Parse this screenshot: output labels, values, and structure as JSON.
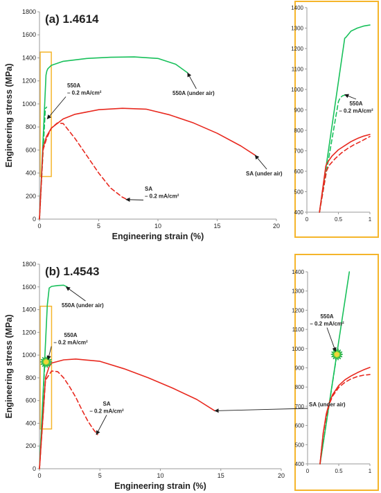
{
  "colors": {
    "green": "#17c05a",
    "red": "#e8281e",
    "frame": "#f5b52a",
    "axis": "#9a9a9a"
  },
  "chart_data": [
    {
      "id": "a-main",
      "type": "line",
      "panel_label": "(a) 1.4614",
      "xlabel": "Engineering strain (%)",
      "ylabel": "Engineering stress (MPa)",
      "xlim": [
        0,
        20
      ],
      "ylim": [
        0,
        1800
      ],
      "xticks": [
        0,
        5,
        10,
        15,
        20
      ],
      "yticks": [
        0,
        200,
        400,
        600,
        800,
        1000,
        1200,
        1400,
        1600,
        1800
      ],
      "xtick_labels": [
        "0",
        "5",
        "10",
        "15",
        "20"
      ],
      "ytick_labels": [
        "0",
        "200",
        "400",
        "600",
        "800",
        "1000",
        "1200",
        "1400",
        "1600",
        "1800"
      ],
      "grid": false,
      "series": [
        {
          "condition": "550A (under air)",
          "color": "green",
          "dashed": false,
          "x": [
            0,
            0.55,
            0.62,
            0.7,
            1,
            2,
            4,
            6,
            8,
            10,
            11.5,
            12.5
          ],
          "y": [
            0,
            1250,
            1285,
            1305,
            1335,
            1370,
            1395,
            1405,
            1408,
            1395,
            1345,
            1270
          ]
        },
        {
          "condition": "550A 0.2 mA/cm2",
          "color": "green",
          "dashed": true,
          "x": [
            0,
            0.5,
            0.6
          ],
          "y": [
            0,
            960,
            972
          ]
        },
        {
          "condition": "SA (under air)",
          "color": "red",
          "dashed": false,
          "x": [
            0,
            0.3,
            0.6,
            1,
            2,
            3,
            5,
            7,
            9,
            11,
            13,
            15,
            17,
            18.2
          ],
          "y": [
            0,
            620,
            720,
            790,
            870,
            910,
            950,
            962,
            955,
            905,
            835,
            745,
            635,
            555
          ]
        },
        {
          "condition": "SA 0.2 mA/cm2",
          "color": "red",
          "dashed": true,
          "x": [
            0,
            0.3,
            0.6,
            1,
            1.5,
            2,
            3,
            4,
            5,
            6,
            7,
            7.5
          ],
          "y": [
            0,
            600,
            700,
            790,
            835,
            830,
            700,
            550,
            400,
            270,
            190,
            165
          ]
        }
      ],
      "annotations": [
        {
          "text": [
            "550A",
            "– 0.2 mA/cm²"
          ],
          "arrow_to": [
            0.65,
            870
          ]
        },
        {
          "text": [
            "550A (under air)"
          ],
          "arrow_to": [
            12.5,
            1270
          ]
        },
        {
          "text": [
            "SA (under air)"
          ],
          "arrow_to": [
            18.2,
            555
          ]
        },
        {
          "text": [
            "SA",
            "– 0.2 mA/cm²"
          ],
          "arrow_to": [
            7.3,
            170
          ]
        }
      ],
      "zoom_box": {
        "x": [
          0,
          1
        ],
        "y": [
          370,
          1450
        ]
      }
    },
    {
      "id": "a-inset",
      "type": "line",
      "xlim": [
        0,
        1
      ],
      "ylim": [
        400,
        1400
      ],
      "xticks": [
        0,
        0.5,
        1
      ],
      "yticks": [
        400,
        500,
        600,
        700,
        800,
        900,
        1000,
        1100,
        1200,
        1300,
        1400
      ],
      "xtick_labels": [
        "0",
        "0.5",
        "1"
      ],
      "ytick_labels": [
        "400",
        "500",
        "600",
        "700",
        "800",
        "900",
        "1000",
        "1100",
        "1200",
        "1300",
        "1400"
      ],
      "grid": false,
      "series": [
        {
          "condition": "550A (under air)",
          "color": "green",
          "dashed": false,
          "x": [
            0.2,
            0.6,
            0.62,
            0.7,
            0.8,
            0.9,
            1.0
          ],
          "y": [
            400,
            1250,
            1255,
            1285,
            1300,
            1310,
            1315
          ]
        },
        {
          "condition": "550A 0.2 mA/cm2",
          "color": "green",
          "dashed": true,
          "x": [
            0.2,
            0.5,
            0.53,
            0.57,
            0.6
          ],
          "y": [
            400,
            940,
            960,
            970,
            972
          ]
        },
        {
          "condition": "SA (under air)",
          "color": "red",
          "dashed": false,
          "x": [
            0.2,
            0.3,
            0.32,
            0.4,
            0.5,
            0.6,
            0.7,
            0.8,
            0.9,
            1.0
          ],
          "y": [
            400,
            625,
            640,
            675,
            705,
            725,
            745,
            760,
            772,
            780
          ]
        },
        {
          "condition": "SA 0.2 mA/cm2",
          "color": "red",
          "dashed": true,
          "x": [
            0.2,
            0.31,
            0.35,
            0.45,
            0.55,
            0.65,
            0.75,
            0.85,
            1.0
          ],
          "y": [
            400,
            600,
            628,
            662,
            690,
            712,
            730,
            745,
            770
          ]
        }
      ],
      "annotations": [
        {
          "text": [
            "550A",
            "– 0.2 mA/cm²"
          ],
          "arrow_to": [
            0.6,
            975
          ]
        }
      ]
    },
    {
      "id": "b-main",
      "type": "line",
      "panel_label": "(b) 1.4543",
      "xlabel": "Engineering strain (%)",
      "ylabel": "Engineering stress (MPa)",
      "xlim": [
        0,
        20
      ],
      "ylim": [
        0,
        1800
      ],
      "xticks": [
        0,
        5,
        10,
        15,
        20
      ],
      "yticks": [
        0,
        200,
        400,
        600,
        800,
        1000,
        1200,
        1400,
        1600,
        1800
      ],
      "xtick_labels": [
        "0",
        "5",
        "10",
        "15",
        "20"
      ],
      "ytick_labels": [
        "0",
        "200",
        "400",
        "600",
        "800",
        "1000",
        "1200",
        "1400",
        "1600",
        "1800"
      ],
      "grid": false,
      "series": [
        {
          "condition": "550A (under air)",
          "color": "green",
          "dashed": false,
          "x": [
            0,
            0.65,
            0.8,
            1,
            1.5,
            2,
            2.3
          ],
          "y": [
            0,
            1440,
            1590,
            1605,
            1612,
            1615,
            1600
          ]
        },
        {
          "condition": "550A 0.2 mA/cm2",
          "color": "green",
          "dashed": true,
          "x": [
            0,
            0.45
          ],
          "y": [
            0,
            960
          ]
        },
        {
          "condition": "SA (under air)",
          "color": "red",
          "dashed": false,
          "x": [
            0,
            0.5,
            0.8,
            1,
            2,
            3,
            5,
            7,
            9,
            11,
            13,
            14.5
          ],
          "y": [
            0,
            800,
            900,
            930,
            958,
            965,
            945,
            880,
            800,
            710,
            610,
            510
          ]
        },
        {
          "condition": "SA 0.2 mA/cm2",
          "color": "red",
          "dashed": true,
          "x": [
            0,
            0.5,
            1,
            1.5,
            2,
            2.5,
            3,
            3.5,
            4,
            4.5,
            4.8
          ],
          "y": [
            0,
            780,
            860,
            855,
            800,
            720,
            630,
            520,
            420,
            340,
            300
          ]
        }
      ],
      "fracture_marker": {
        "x": 0.55,
        "y": 940
      },
      "annotations": [
        {
          "text": [
            "550A (under air)"
          ],
          "arrow_to": [
            2.2,
            1600
          ]
        },
        {
          "text": [
            "550A",
            "– 0.2 mA/cm²"
          ],
          "arrow_to": [
            0.7,
            960
          ]
        },
        {
          "text": [
            "SA (under air)"
          ],
          "arrow_to": [
            14.5,
            510
          ]
        },
        {
          "text": [
            "SA",
            "– 0.2 mA/cm²"
          ],
          "arrow_to": [
            4.7,
            300
          ]
        }
      ],
      "zoom_box": {
        "x": [
          0,
          1
        ],
        "y": [
          350,
          1430
        ]
      }
    },
    {
      "id": "b-inset",
      "type": "line",
      "xlim": [
        0,
        1
      ],
      "ylim": [
        400,
        1400
      ],
      "xticks": [
        0,
        0.5,
        1
      ],
      "yticks": [
        400,
        500,
        600,
        700,
        800,
        900,
        1000,
        1100,
        1200,
        1300,
        1400
      ],
      "xtick_labels": [
        "0",
        "0.5",
        "1"
      ],
      "ytick_labels": [
        "400",
        "500",
        "600",
        "700",
        "800",
        "900",
        "1000",
        "1100",
        "1200",
        "1300",
        "1400"
      ],
      "grid": false,
      "series": [
        {
          "condition": "550A (under air)",
          "color": "green",
          "dashed": false,
          "x": [
            0.2,
            0.67
          ],
          "y": [
            400,
            1400
          ]
        },
        {
          "condition": "550A 0.2 mA/cm2",
          "color": "green",
          "dashed": true,
          "x": [
            0.2,
            0.47
          ],
          "y": [
            400,
            970
          ]
        },
        {
          "condition": "SA (under air)",
          "color": "red",
          "dashed": false,
          "x": [
            0.2,
            0.25,
            0.3,
            0.35,
            0.4,
            0.5,
            0.6,
            0.7,
            0.8,
            0.9,
            1.0
          ],
          "y": [
            400,
            560,
            660,
            720,
            760,
            808,
            838,
            858,
            875,
            890,
            902
          ]
        },
        {
          "condition": "SA 0.2 mA/cm2",
          "color": "red",
          "dashed": true,
          "x": [
            0.2,
            0.25,
            0.3,
            0.35,
            0.4,
            0.5,
            0.6,
            0.7,
            0.8,
            0.9,
            1.0
          ],
          "y": [
            400,
            555,
            650,
            712,
            752,
            798,
            825,
            843,
            855,
            862,
            865
          ]
        }
      ],
      "fracture_marker": {
        "x": 0.47,
        "y": 970
      },
      "annotations": [
        {
          "text": [
            "550A",
            "– 0.2 mA/cm²"
          ],
          "arrow_to": [
            0.45,
            985
          ]
        }
      ]
    }
  ]
}
